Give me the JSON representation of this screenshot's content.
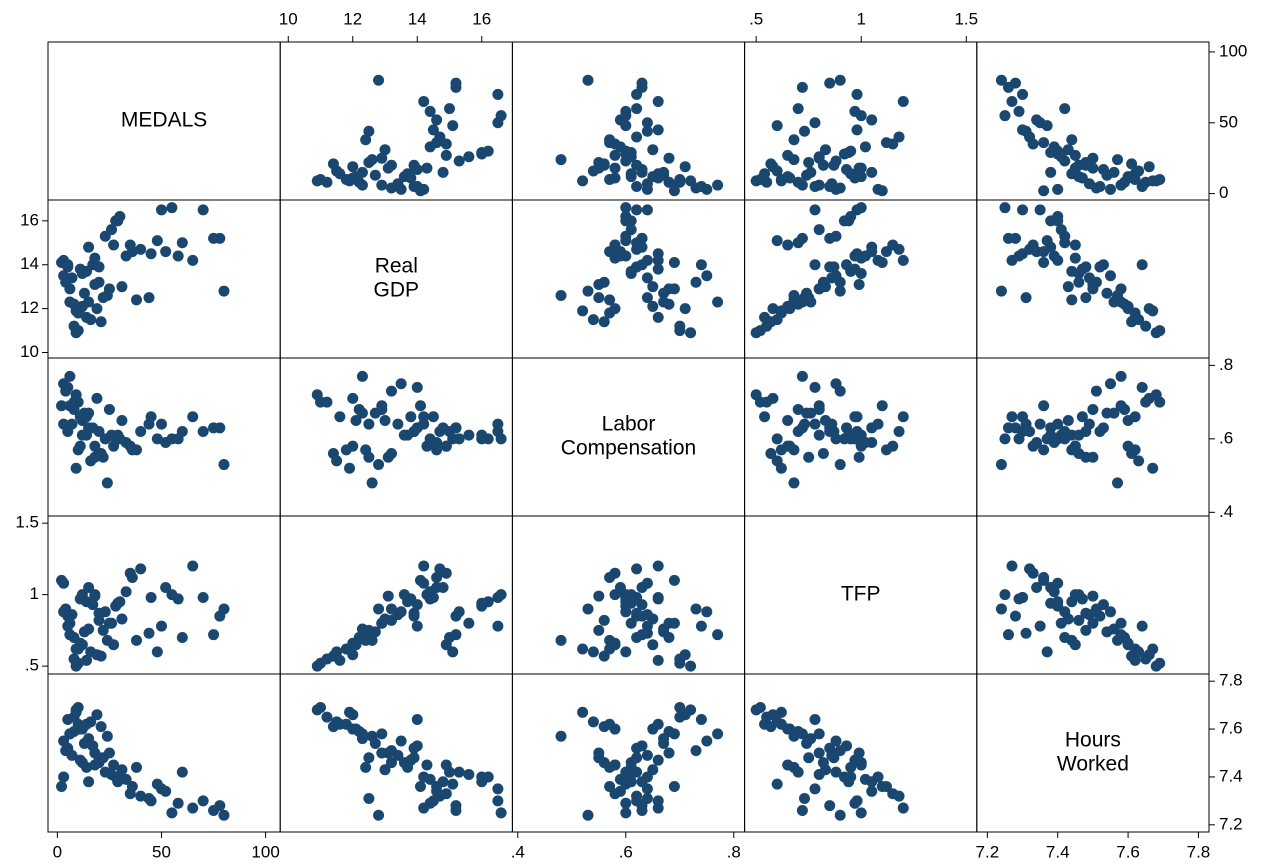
{
  "chart_data": {
    "type": "scatter_matrix",
    "color": "#1a476f",
    "variables": [
      {
        "label": [
          "MEDALS"
        ],
        "lim": [
          -4.5,
          107
        ],
        "ticks": [
          0,
          50,
          100
        ],
        "values": [
          5,
          12,
          18,
          8,
          22,
          30,
          3,
          15,
          25,
          10,
          45,
          55,
          60,
          80,
          78,
          50,
          35,
          20,
          14,
          9,
          6,
          2,
          28,
          40,
          16,
          11,
          24,
          33,
          19,
          7,
          13,
          4,
          26,
          38,
          52,
          65,
          70,
          48,
          21,
          17,
          10,
          8,
          31,
          12,
          5,
          27,
          15,
          23,
          9,
          44,
          58,
          75,
          18,
          6,
          29,
          36,
          14,
          20,
          3,
          11
        ]
      },
      {
        "label": [
          "Real",
          "GDP"
        ],
        "lim": [
          9.75,
          16.95
        ],
        "ticks": [
          10,
          12,
          14,
          16
        ],
        "values": [
          13.9,
          12.1,
          14.3,
          11.2,
          12.5,
          16.2,
          13.5,
          14.8,
          12.9,
          11.8,
          14.5,
          16.6,
          15.0,
          12.8,
          15.2,
          16.5,
          14.9,
          13.2,
          13.7,
          10.9,
          12.3,
          14.1,
          16.0,
          14.7,
          11.5,
          13.8,
          12.6,
          14.4,
          12.0,
          13.4,
          12.7,
          13.2,
          15.6,
          12.4,
          14.6,
          14.2,
          16.5,
          15.1,
          11.4,
          14.0,
          11.0,
          12.2,
          13.0,
          13.6,
          14.0,
          14.9,
          12.3,
          15.3,
          11.9,
          12.5,
          14.4,
          15.2,
          13.1,
          12.9,
          16.0,
          14.6,
          11.6,
          13.9,
          14.2,
          12.0
        ]
      },
      {
        "label": [
          "Labor",
          "Compensation"
        ],
        "lim": [
          0.39,
          0.82
        ],
        "ticks": [
          {
            "value": 0.4,
            "label": ".4"
          },
          {
            "value": 0.6,
            "label": ".6"
          },
          {
            "value": 0.8,
            "label": ".8"
          }
        ],
        "values": [
          0.62,
          0.65,
          0.58,
          0.7,
          0.55,
          0.6,
          0.75,
          0.63,
          0.68,
          0.57,
          0.66,
          0.6,
          0.62,
          0.53,
          0.63,
          0.64,
          0.58,
          0.56,
          0.61,
          0.72,
          0.77,
          0.69,
          0.6,
          0.62,
          0.54,
          0.66,
          0.48,
          0.59,
          0.71,
          0.64,
          0.67,
          0.73,
          0.61,
          0.57,
          0.59,
          0.66,
          0.62,
          0.6,
          0.56,
          0.63,
          0.7,
          0.68,
          0.65,
          0.61,
          0.74,
          0.58,
          0.67,
          0.6,
          0.52,
          0.64,
          0.6,
          0.63,
          0.55,
          0.69,
          0.61,
          0.57,
          0.66,
          0.62,
          0.64,
          0.58
        ]
      },
      {
        "label": [
          "TFP"
        ],
        "lim": [
          0.445,
          1.55
        ],
        "ticks": [
          {
            "value": 0.5,
            "label": ".5"
          },
          1,
          1.5
        ],
        "values": [
          0.85,
          0.65,
          1.0,
          0.55,
          0.75,
          0.95,
          0.88,
          1.05,
          0.8,
          0.62,
          0.98,
          1.0,
          0.7,
          0.9,
          0.85,
          0.78,
          1.15,
          0.82,
          0.95,
          0.5,
          0.72,
          1.1,
          0.92,
          1.18,
          0.6,
          0.97,
          0.68,
          1.02,
          0.58,
          0.86,
          0.74,
          0.9,
          0.8,
          0.68,
          1.05,
          1.2,
          0.98,
          0.6,
          0.57,
          0.93,
          0.52,
          0.7,
          0.83,
          1.0,
          0.78,
          0.65,
          0.76,
          0.88,
          0.62,
          0.73,
          0.97,
          0.72,
          0.99,
          0.8,
          0.94,
          1.12,
          0.54,
          0.87,
          1.08,
          0.66
        ]
      },
      {
        "label": [
          "Hours",
          "Worked"
        ],
        "lim": [
          7.17,
          7.83
        ],
        "ticks": [
          7.2,
          7.4,
          7.6,
          7.8
        ],
        "values": [
          7.52,
          7.6,
          7.45,
          7.65,
          7.48,
          7.4,
          7.55,
          7.38,
          7.5,
          7.62,
          7.3,
          7.25,
          7.42,
          7.24,
          7.28,
          7.35,
          7.33,
          7.46,
          7.44,
          7.68,
          7.58,
          7.36,
          7.4,
          7.32,
          7.63,
          7.47,
          7.57,
          7.39,
          7.66,
          7.49,
          7.54,
          7.51,
          7.41,
          7.44,
          7.34,
          7.27,
          7.3,
          7.37,
          7.61,
          7.53,
          7.69,
          7.59,
          7.43,
          7.46,
          7.64,
          7.45,
          7.56,
          7.42,
          7.67,
          7.31,
          7.29,
          7.26,
          7.5,
          7.58,
          7.38,
          7.36,
          7.62,
          7.48,
          7.4,
          7.6
        ]
      }
    ]
  }
}
